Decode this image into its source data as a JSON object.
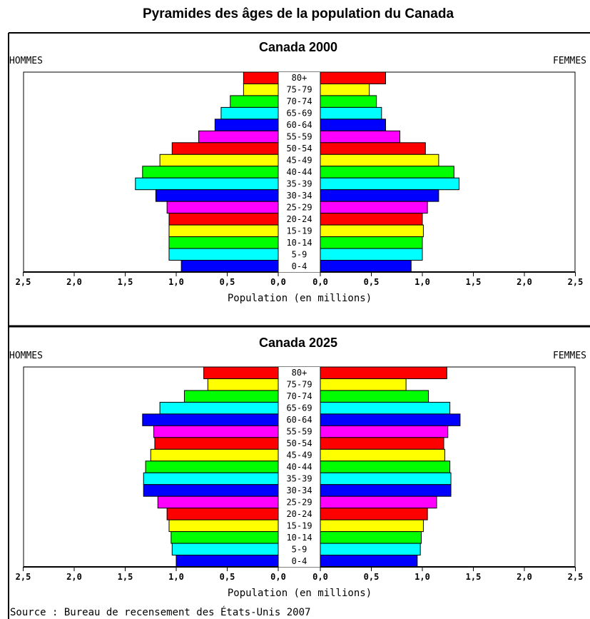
{
  "title": "Pyramides des âges de la population du Canada",
  "source": "Source : Bureau de recensement des États-Unis 2007",
  "colors": {
    "cycle": [
      "#0000ff",
      "#00ffff",
      "#00ff00",
      "#ffff00",
      "#ff0000",
      "#ff00ff"
    ],
    "border": "#000000"
  },
  "chart_data": [
    {
      "type": "bar",
      "title": "Canada 2000",
      "left_label": "HOMMES",
      "right_label": "FEMMES",
      "xlabel": "Population (en millions)",
      "xlim": [
        0,
        2.5
      ],
      "ticks_left": [
        "2,5",
        "2,0",
        "1,5",
        "1,0",
        "0,5",
        "0,0"
      ],
      "ticks_right": [
        "0,0",
        "0,5",
        "1,0",
        "1,5",
        "2,0",
        "2,5"
      ],
      "categories": [
        "80+",
        "75-79",
        "70-74",
        "65-69",
        "60-64",
        "55-59",
        "50-54",
        "45-49",
        "40-44",
        "35-39",
        "30-34",
        "25-29",
        "20-24",
        "15-19",
        "10-14",
        "5-9",
        "0-4"
      ],
      "series": [
        {
          "name": "HOMMES",
          "values": [
            0.34,
            0.34,
            0.47,
            0.56,
            0.62,
            0.78,
            1.04,
            1.16,
            1.33,
            1.4,
            1.2,
            1.09,
            1.07,
            1.07,
            1.07,
            1.07,
            0.95
          ]
        },
        {
          "name": "FEMMES",
          "values": [
            0.64,
            0.48,
            0.55,
            0.6,
            0.64,
            0.78,
            1.03,
            1.16,
            1.31,
            1.36,
            1.16,
            1.05,
            1.0,
            1.01,
            1.0,
            1.0,
            0.89
          ]
        }
      ]
    },
    {
      "type": "bar",
      "title": "Canada 2025",
      "left_label": "HOMMES",
      "right_label": "FEMMES",
      "xlabel": "Population (en millions)",
      "xlim": [
        0,
        2.5
      ],
      "ticks_left": [
        "2,5",
        "2,0",
        "1,5",
        "1,0",
        "0,5",
        "0,0"
      ],
      "ticks_right": [
        "0,0",
        "0,5",
        "1,0",
        "1,5",
        "2,0",
        "2,5"
      ],
      "categories": [
        "80+",
        "75-79",
        "70-74",
        "65-69",
        "60-64",
        "55-59",
        "50-54",
        "45-49",
        "40-44",
        "35-39",
        "30-34",
        "25-29",
        "20-24",
        "15-19",
        "10-14",
        "5-9",
        "0-4"
      ],
      "series": [
        {
          "name": "HOMMES",
          "values": [
            0.73,
            0.69,
            0.92,
            1.16,
            1.33,
            1.22,
            1.21,
            1.25,
            1.3,
            1.32,
            1.32,
            1.18,
            1.09,
            1.07,
            1.05,
            1.04,
            1.0
          ]
        },
        {
          "name": "FEMMES",
          "values": [
            1.24,
            0.84,
            1.06,
            1.27,
            1.37,
            1.25,
            1.21,
            1.22,
            1.27,
            1.28,
            1.28,
            1.14,
            1.05,
            1.01,
            0.99,
            0.98,
            0.95
          ]
        }
      ]
    }
  ]
}
